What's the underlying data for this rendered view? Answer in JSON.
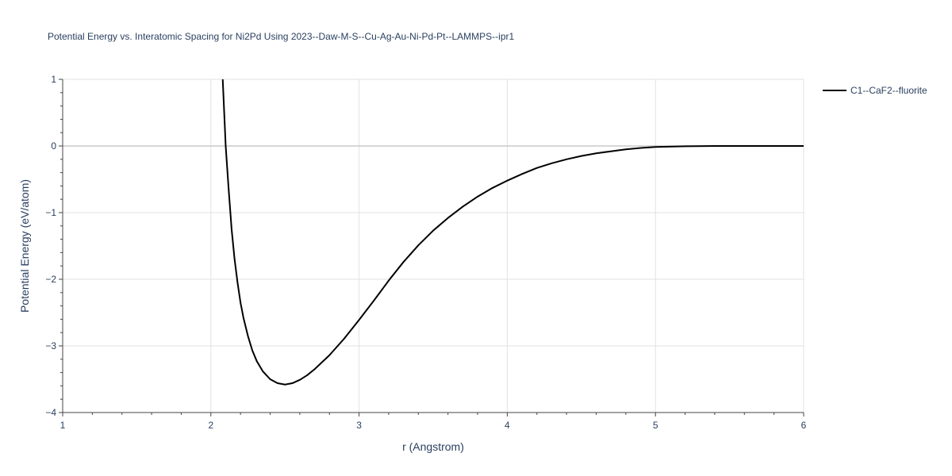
{
  "chart_data": {
    "type": "line",
    "title": "Potential Energy vs. Interatomic Spacing for Ni2Pd Using 2023--Daw-M-S--Cu-Ag-Au-Ni-Pd-Pt--LAMMPS--ipr1",
    "xlabel": "r (Angstrom)",
    "ylabel": "Potential Energy (eV/atom)",
    "xlim": [
      1,
      6
    ],
    "ylim": [
      -4,
      1
    ],
    "x_ticks": [
      "1",
      "2",
      "3",
      "4",
      "5",
      "6"
    ],
    "y_ticks": [
      "−4",
      "−3",
      "−2",
      "−1",
      "0",
      "1"
    ],
    "grid": true,
    "legend_position": "top-right",
    "colors": {
      "line": "#000000",
      "text": "#2a3f5f",
      "grid": "#e1e1e1",
      "zeroline": "#c8c8c8"
    },
    "series": [
      {
        "name": "C1--CaF2--fluorite",
        "x": [
          2.08,
          2.1,
          2.12,
          2.14,
          2.16,
          2.18,
          2.2,
          2.22,
          2.25,
          2.28,
          2.31,
          2.35,
          2.4,
          2.45,
          2.5,
          2.55,
          2.6,
          2.65,
          2.7,
          2.8,
          2.9,
          3.0,
          3.1,
          3.2,
          3.3,
          3.4,
          3.5,
          3.6,
          3.7,
          3.8,
          3.9,
          4.0,
          4.1,
          4.2,
          4.3,
          4.4,
          4.5,
          4.6,
          4.7,
          4.8,
          4.9,
          5.0,
          5.2,
          5.4,
          5.6,
          5.8,
          6.0
        ],
        "y": [
          1.0,
          0.0,
          -0.65,
          -1.25,
          -1.7,
          -2.05,
          -2.35,
          -2.58,
          -2.85,
          -3.07,
          -3.23,
          -3.38,
          -3.5,
          -3.56,
          -3.58,
          -3.56,
          -3.51,
          -3.44,
          -3.35,
          -3.14,
          -2.89,
          -2.61,
          -2.32,
          -2.02,
          -1.74,
          -1.49,
          -1.27,
          -1.08,
          -0.91,
          -0.76,
          -0.63,
          -0.52,
          -0.42,
          -0.33,
          -0.26,
          -0.2,
          -0.15,
          -0.11,
          -0.08,
          -0.05,
          -0.03,
          -0.015,
          -0.005,
          0.0,
          0.0,
          0.0,
          0.0
        ]
      }
    ]
  }
}
